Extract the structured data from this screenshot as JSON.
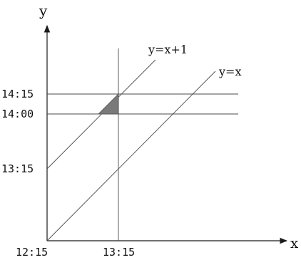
{
  "axes": {
    "x_label": "x",
    "y_label": "y",
    "x_ticks": [
      "12:15",
      "13:15"
    ],
    "y_ticks": [
      "14:15",
      "14:00",
      "13:15"
    ]
  },
  "lines": {
    "upper_label": "y=x+1",
    "lower_label": "y=x"
  },
  "colors": {
    "lines": "#4a4a4a",
    "axes": "#1a1a1a",
    "shaded_region": "#7a7a7a"
  }
}
